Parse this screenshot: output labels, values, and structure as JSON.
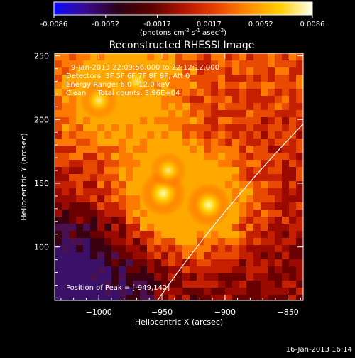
{
  "colorbar": {
    "tick_labels": [
      "-0.0086",
      "-0.0052",
      "-0.0017",
      "0.0017",
      "0.0052",
      "0.0086"
    ],
    "unit_parts": [
      "(photons cm",
      "-2",
      " s",
      "-1",
      " asec",
      "-2",
      ")"
    ],
    "gradient_colors": [
      "#0a0aff",
      "#3a0a8a",
      "#2a0016",
      "#5a0000",
      "#b01400",
      "#e84000",
      "#ff8a00",
      "#ffd000",
      "#fffff0"
    ]
  },
  "image": {
    "title": "Reconstructed RHESSI Image",
    "info_lines": [
      "9-Jan-2013 22:09:56.000 to 22:12:12.000",
      "Detectors: 3F 5F 6F 7F 8F 9F, Att 0",
      "Energy Range: 6.0 - 12.0 keV",
      "Clean     Total counts: 3.96E+04"
    ],
    "peak_label": "Position of Peak = [-949,142]",
    "xlabel": "Heliocentric X (arcsec)",
    "ylabel": "Heliocentric Y (arcsec)",
    "xticks": [
      "-1000",
      "-950",
      "-900",
      "-850"
    ],
    "yticks": [
      "100",
      "150",
      "200",
      "250"
    ],
    "x_range": [
      -1035,
      -838
    ],
    "y_range": [
      58,
      252
    ],
    "limb_color": "#ffffff",
    "sources": [
      {
        "x": -949,
        "y": 142,
        "peak": 1.0
      },
      {
        "x": -913,
        "y": 133,
        "peak": 0.95
      },
      {
        "x": -945,
        "y": 160,
        "peak": 0.65
      },
      {
        "x": -1000,
        "y": 215,
        "peak": 0.7
      },
      {
        "x": -970,
        "y": 230,
        "peak": 0.6
      }
    ]
  },
  "footer": {
    "timestamp": "16-Jan-2013 16:14"
  }
}
